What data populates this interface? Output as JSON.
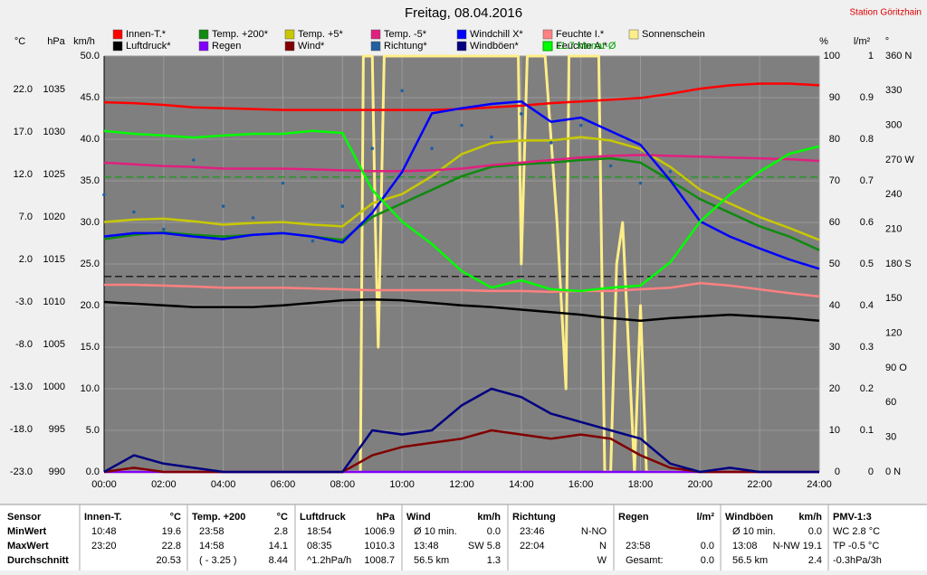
{
  "chart_data": {
    "type": "line",
    "title": "Freitag, 08.04.2016",
    "station": "Station Göritzhain",
    "xlim": [
      0,
      24
    ],
    "xticks": [
      {
        "value": 0,
        "label": "00:00"
      },
      {
        "value": 2,
        "label": "02:00"
      },
      {
        "value": 4,
        "label": "04:00"
      },
      {
        "value": 6,
        "label": "06:00"
      },
      {
        "value": 8,
        "label": "08:00"
      },
      {
        "value": 10,
        "label": "10:00"
      },
      {
        "value": 12,
        "label": "12:00"
      },
      {
        "value": 14,
        "label": "14:00"
      },
      {
        "value": 16,
        "label": "16:00"
      },
      {
        "value": 18,
        "label": "18:00"
      },
      {
        "value": 20,
        "label": "20:00"
      },
      {
        "value": 22,
        "label": "22:00"
      },
      {
        "value": 24,
        "label": "24:00"
      }
    ],
    "x": [
      0,
      1,
      2,
      3,
      4,
      5,
      6,
      7,
      8,
      9,
      10,
      11,
      12,
      13,
      14,
      15,
      16,
      17,
      18,
      19,
      20,
      21,
      22,
      23,
      24
    ],
    "axes": [
      {
        "label": "°C",
        "side": "left",
        "ylim": [
          -23,
          25.94
        ],
        "yticks": [
          {
            "value": -23,
            "label": "-23.0"
          },
          {
            "value": -18,
            "label": "-18.0"
          },
          {
            "value": -13,
            "label": "-13.0"
          },
          {
            "value": -8,
            "label": "-8.0"
          },
          {
            "value": -3,
            "label": "-3.0"
          },
          {
            "value": 2,
            "label": "2.0"
          },
          {
            "value": 7,
            "label": "7.0"
          },
          {
            "value": 12,
            "label": "12.0"
          },
          {
            "value": 17,
            "label": "17.0"
          },
          {
            "value": 22,
            "label": "22.0"
          }
        ]
      },
      {
        "label": "hPa",
        "side": "left",
        "ylim": [
          990,
          1038.94
        ],
        "yticks": [
          990,
          995,
          1000,
          1005,
          1010,
          1015,
          1020,
          1025,
          1030,
          1035
        ]
      },
      {
        "label": "km/h",
        "side": "left",
        "grid": true,
        "ylim": [
          0,
          50
        ],
        "yticks": [
          {
            "value": 0,
            "label": "0.0"
          },
          {
            "value": 5,
            "label": "5.0"
          },
          {
            "value": 10,
            "label": "10.0"
          },
          {
            "value": 15,
            "label": "15.0"
          },
          {
            "value": 20,
            "label": "20.0"
          },
          {
            "value": 25,
            "label": "25.0"
          },
          {
            "value": 30,
            "label": "30.0"
          },
          {
            "value": 35,
            "label": "35.0"
          },
          {
            "value": 40,
            "label": "40.0"
          },
          {
            "value": 45,
            "label": "45.0"
          },
          {
            "value": 50,
            "label": "50.0"
          }
        ]
      },
      {
        "label": "%",
        "side": "right",
        "ylim": [
          0,
          100
        ],
        "yticks": [
          0,
          10,
          20,
          30,
          40,
          50,
          60,
          70,
          80,
          90,
          100
        ]
      },
      {
        "label": "l/m²",
        "side": "right",
        "ylim": [
          0,
          1
        ],
        "yticks": [
          0,
          0.1,
          0.2,
          0.3,
          0.4,
          0.5,
          0.6,
          0.7,
          0.8,
          0.9,
          1
        ]
      },
      {
        "label": "°",
        "side": "right",
        "ylim": [
          0,
          360
        ],
        "yticks": [
          {
            "value": 0,
            "label": "0 N"
          },
          {
            "value": 30,
            "label": "30"
          },
          {
            "value": 60,
            "label": "60"
          },
          {
            "value": 90,
            "label": "90 O"
          },
          {
            "value": 120,
            "label": "120"
          },
          {
            "value": 150,
            "label": "150"
          },
          {
            "value": 180,
            "label": "180 S"
          },
          {
            "value": 210,
            "label": "210"
          },
          {
            "value": 240,
            "label": "240"
          },
          {
            "value": 270,
            "label": "270 W"
          },
          {
            "value": 300,
            "label": "300"
          },
          {
            "value": 330,
            "label": "330"
          },
          {
            "value": 360,
            "label": "360 N"
          }
        ]
      }
    ],
    "series": [
      {
        "name": "Innen-T.*",
        "color": "#ff0000",
        "axis": 0,
        "values": [
          20.5,
          20.4,
          20.2,
          19.9,
          19.8,
          19.7,
          19.6,
          19.6,
          19.6,
          19.6,
          19.6,
          19.6,
          19.7,
          19.9,
          20.1,
          20.4,
          20.6,
          20.8,
          21.0,
          21.5,
          22.1,
          22.5,
          22.7,
          22.7,
          22.5
        ]
      },
      {
        "name": "Luftdruck*",
        "color": "#000000",
        "axis": 1,
        "values": [
          1010.0,
          1009.8,
          1009.6,
          1009.4,
          1009.4,
          1009.4,
          1009.6,
          1009.9,
          1010.2,
          1010.3,
          1010.2,
          1009.9,
          1009.6,
          1009.4,
          1009.1,
          1008.8,
          1008.5,
          1008.1,
          1007.8,
          1008.1,
          1008.3,
          1008.5,
          1008.3,
          1008.1,
          1007.8
        ]
      },
      {
        "name": "Temp. +200*",
        "color": "#108a10",
        "axis": 0,
        "values": [
          4.4,
          4.9,
          5.2,
          4.9,
          4.7,
          4.9,
          5.1,
          4.7,
          4.3,
          7.0,
          8.6,
          10.2,
          11.8,
          12.9,
          13.2,
          13.4,
          13.7,
          13.9,
          13.4,
          11.3,
          9.1,
          7.5,
          5.9,
          4.7,
          3.1
        ]
      },
      {
        "name": "Regen",
        "color": "#8000ff",
        "axis": 4,
        "values": [
          0,
          0,
          0,
          0,
          0,
          0,
          0,
          0,
          0,
          0,
          0,
          0,
          0,
          0,
          0,
          0,
          0,
          0,
          0,
          0,
          0,
          0,
          0,
          0,
          0
        ]
      },
      {
        "name": "Temp. +5*",
        "color": "#c8c800",
        "axis": 0,
        "values": [
          6.4,
          6.7,
          6.8,
          6.5,
          6.1,
          6.3,
          6.4,
          6.1,
          5.9,
          8.6,
          9.7,
          11.8,
          14.4,
          15.7,
          16.0,
          16.0,
          16.4,
          16.0,
          15.0,
          12.9,
          10.2,
          8.6,
          7.0,
          5.7,
          4.3
        ]
      },
      {
        "name": "Wind*",
        "color": "#800000",
        "axis": 2,
        "values": [
          0,
          0.5,
          0,
          0,
          0,
          0,
          0,
          0,
          0,
          2,
          3,
          3.5,
          4,
          5,
          4.5,
          4,
          4.5,
          4,
          2,
          0.5,
          0,
          0,
          0,
          0,
          0
        ]
      },
      {
        "name": "Temp. -5*",
        "color": "#e0207f",
        "axis": 0,
        "values": [
          13.4,
          13.2,
          13.0,
          12.9,
          12.7,
          12.7,
          12.7,
          12.6,
          12.5,
          12.4,
          12.4,
          12.5,
          12.7,
          13.1,
          13.4,
          13.7,
          14.0,
          14.2,
          14.3,
          14.2,
          14.1,
          14.0,
          13.9,
          13.8,
          13.6
        ]
      },
      {
        "name": "Richtung*",
        "color": "#2060a0",
        "axis": 5,
        "mark": "dots",
        "values": [
          240,
          225,
          210,
          270,
          230,
          220,
          250,
          200,
          230,
          280,
          330,
          280,
          300,
          290,
          310,
          285,
          300,
          265,
          250,
          260,
          null,
          null,
          null,
          null,
          null
        ]
      },
      {
        "name": "Windchill X*",
        "color": "#0000ff",
        "axis": 0,
        "values": [
          4.7,
          5.1,
          5.1,
          4.7,
          4.4,
          4.9,
          5.1,
          4.7,
          4.0,
          7.5,
          12.3,
          19.2,
          19.8,
          20.3,
          20.6,
          18.2,
          18.7,
          17.1,
          15.5,
          11.3,
          6.5,
          4.7,
          3.3,
          2.0,
          0.9
        ]
      },
      {
        "name": "Windböen*",
        "color": "#000080",
        "axis": 2,
        "values": [
          0,
          2,
          1,
          0.5,
          0,
          0,
          0,
          0,
          0,
          5,
          4.5,
          5,
          8,
          10,
          9,
          7,
          6,
          5,
          4,
          1,
          0,
          0.5,
          0,
          0,
          0
        ]
      },
      {
        "name": "Feuchte I.*",
        "color": "#ff8080",
        "axis": 3,
        "values": [
          45.0,
          45.0,
          44.8,
          44.6,
          44.3,
          44.3,
          44.3,
          44.1,
          43.9,
          43.7,
          43.7,
          43.7,
          43.7,
          43.5,
          43.5,
          43.3,
          43.5,
          43.5,
          43.9,
          44.3,
          45.4,
          44.8,
          43.9,
          43.0,
          42.2
        ]
      },
      {
        "name": "Feuchte A.*",
        "color": "#00ff00",
        "axis": 3,
        "values": [
          82.0,
          81.3,
          80.9,
          80.4,
          80.9,
          81.3,
          81.3,
          82.0,
          81.5,
          67.8,
          60.2,
          54.8,
          48.3,
          44.3,
          46.1,
          43.9,
          43.5,
          44.3,
          44.8,
          50.4,
          60.2,
          66.7,
          72.2,
          76.5,
          78.3
        ]
      },
      {
        "name": "Sonnenschein",
        "color": "#ffee88",
        "axis": 2,
        "x": [
          0,
          8.6,
          8.7,
          9.0,
          9.1,
          9.2,
          9.4,
          9.6,
          10,
          11,
          12,
          13,
          13.9,
          14.0,
          14.2,
          14.3,
          14.8,
          15.2,
          15.5,
          15.6,
          15.8,
          16.6,
          16.8,
          17.0,
          17.2,
          17.4,
          17.6,
          17.8,
          18.0,
          18.2,
          18.4,
          24
        ],
        "values": [
          0,
          0,
          50,
          50,
          30,
          15,
          50,
          50,
          50,
          50,
          50,
          50,
          50,
          25,
          50,
          50,
          50,
          30,
          10,
          50,
          50,
          50,
          0,
          0,
          25,
          30,
          15,
          0,
          20,
          0,
          0,
          0
        ]
      }
    ],
    "reference": {
      "label": "11.7 Monat-Ø",
      "value": 11.7,
      "axis": 0,
      "color": "#00a000"
    }
  },
  "table": {
    "groups": [
      {
        "header": [
          "Sensor"
        ],
        "rows": [
          [
            "MinWert"
          ],
          [
            "MaxWert"
          ],
          [
            "Durchschnitt"
          ]
        ]
      },
      {
        "header": [
          "Innen-T.",
          "°C"
        ],
        "rows": [
          [
            "10:48",
            "19.6"
          ],
          [
            "23:20",
            "22.8"
          ],
          [
            null,
            "20.53"
          ]
        ]
      },
      {
        "header": [
          "Temp. +200",
          "°C"
        ],
        "rows": [
          [
            "23:58",
            "2.8"
          ],
          [
            "14:58",
            "14.1"
          ],
          [
            "( - 3.25 )",
            "8.44"
          ]
        ]
      },
      {
        "header": [
          "Luftdruck",
          "hPa"
        ],
        "rows": [
          [
            "18:54",
            "1006.9"
          ],
          [
            "08:35",
            "1010.3"
          ],
          [
            "^1.2hPa/h",
            "1008.7"
          ]
        ]
      },
      {
        "header": [
          "Wind",
          "km/h"
        ],
        "rows": [
          [
            "Ø 10 min.",
            "0.0"
          ],
          [
            "13:48",
            "SW 5.8"
          ],
          [
            "56.5 km",
            "1.3"
          ]
        ]
      },
      {
        "header": [
          "Richtung",
          null
        ],
        "rows": [
          [
            "23:46",
            "N-NO"
          ],
          [
            "22:04",
            "N"
          ],
          [
            null,
            "W"
          ]
        ]
      },
      {
        "header": [
          "Regen",
          "l/m²"
        ],
        "rows": [
          [
            null,
            null
          ],
          [
            "23:58",
            "0.0"
          ],
          [
            "Gesamt:",
            "0.0"
          ]
        ]
      },
      {
        "header": [
          "Windböen",
          "km/h"
        ],
        "rows": [
          [
            "Ø 10 min.",
            "0.0"
          ],
          [
            "13:08",
            "N-NW 19.1"
          ],
          [
            "56.5 km",
            "2.4"
          ]
        ]
      },
      {
        "header": [
          "PMV-1:3"
        ],
        "rows": [
          [
            "WC 2.8 °C"
          ],
          [
            "TP -0.5 °C"
          ],
          [
            "-0.3hPa/3h"
          ]
        ]
      }
    ]
  }
}
